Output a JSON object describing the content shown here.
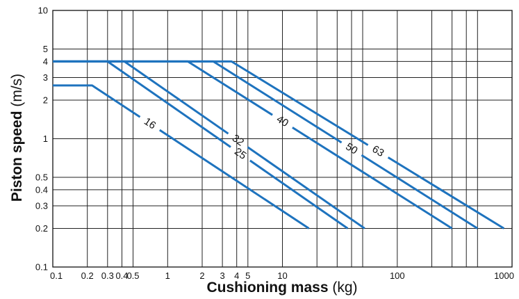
{
  "chart_data": {
    "type": "line",
    "title": "",
    "x_scale": "log",
    "y_scale": "log",
    "xlabel": {
      "bold": "Cushioning mass",
      "unit": " (kg)"
    },
    "ylabel": {
      "bold": "Piston speed",
      "unit": " (m/s)"
    },
    "xlim": [
      0.1,
      1000
    ],
    "ylim": [
      0.1,
      10
    ],
    "grid": true,
    "legend": "none",
    "line_color": "#1e73be",
    "x_ticks": [
      {
        "v": 0.1,
        "t": "0.1"
      },
      {
        "v": 0.2,
        "t": "0.2"
      },
      {
        "v": 0.3,
        "t": "0.3"
      },
      {
        "v": 0.4,
        "t": "0.4"
      },
      {
        "v": 0.5,
        "t": "0.5"
      },
      {
        "v": 1,
        "t": "1"
      },
      {
        "v": 2,
        "t": "2"
      },
      {
        "v": 3,
        "t": "3"
      },
      {
        "v": 4,
        "t": "4"
      },
      {
        "v": 5,
        "t": "5"
      },
      {
        "v": 10,
        "t": "10"
      },
      {
        "v": 100,
        "t": "100"
      },
      {
        "v": 1000,
        "t": "1000"
      }
    ],
    "y_ticks": [
      {
        "v": 0.1,
        "t": "0.1"
      },
      {
        "v": 0.2,
        "t": "0.2"
      },
      {
        "v": 0.3,
        "t": "0.3"
      },
      {
        "v": 0.4,
        "t": "0.4"
      },
      {
        "v": 0.5,
        "t": "0.5"
      },
      {
        "v": 1,
        "t": "1"
      },
      {
        "v": 2,
        "t": "2"
      },
      {
        "v": 3,
        "t": "3"
      },
      {
        "v": 4,
        "t": "4"
      },
      {
        "v": 5,
        "t": "5"
      },
      {
        "v": 10,
        "t": "10"
      }
    ],
    "x_grid": [
      0.2,
      0.3,
      0.4,
      0.5,
      1,
      2,
      3,
      4,
      5,
      10,
      20,
      30,
      40,
      50,
      100,
      200,
      300,
      400,
      500
    ],
    "y_grid": [
      0.2,
      0.3,
      0.4,
      0.5,
      1,
      2,
      3,
      4,
      5
    ],
    "series": [
      {
        "name": "16",
        "points": [
          [
            0.1,
            2.6
          ],
          [
            0.22,
            2.6
          ],
          [
            17,
            0.2
          ]
        ],
        "label_at": 0.7
      },
      {
        "name": "25",
        "points": [
          [
            0.1,
            4
          ],
          [
            0.3,
            4
          ],
          [
            37,
            0.2
          ]
        ],
        "label_at": 4.3
      },
      {
        "name": "32",
        "points": [
          [
            0.1,
            4
          ],
          [
            0.42,
            4
          ],
          [
            52,
            0.2
          ]
        ],
        "label_at": 4.1
      },
      {
        "name": "40",
        "points": [
          [
            0.1,
            4
          ],
          [
            1.5,
            4
          ],
          [
            300,
            0.2
          ]
        ],
        "label_at": 10
      },
      {
        "name": "50",
        "points": [
          [
            0.1,
            4
          ],
          [
            2.5,
            4
          ],
          [
            500,
            0.2
          ]
        ],
        "label_at": 40
      },
      {
        "name": "63",
        "points": [
          [
            0.1,
            4
          ],
          [
            3.6,
            4
          ],
          [
            850,
            0.2
          ]
        ],
        "label_at": 68
      }
    ]
  }
}
